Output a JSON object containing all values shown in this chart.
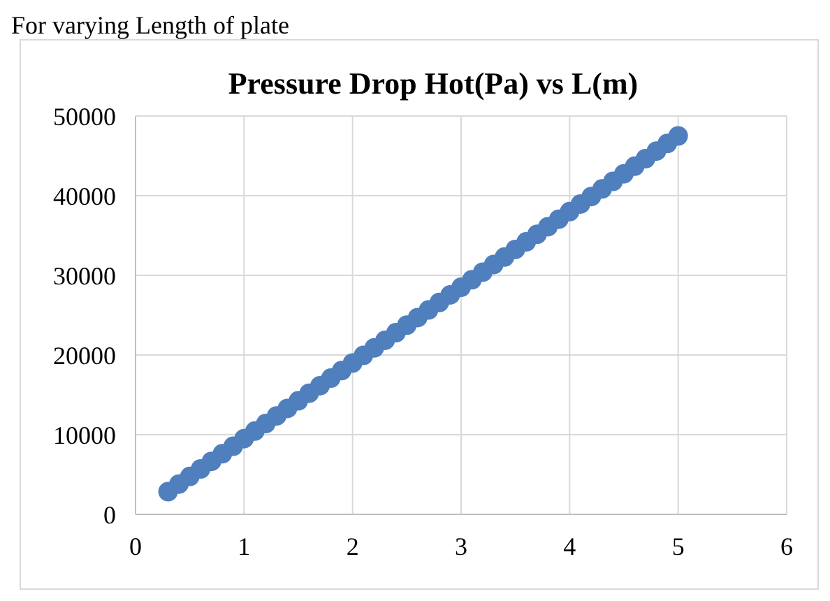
{
  "chart_data": {
    "type": "scatter",
    "title": "Pressure Drop Hot(Pa) vs L(m)",
    "annotations": [
      "For varying Length of plate"
    ],
    "x": [
      0.3,
      0.4,
      0.5,
      0.6,
      0.7,
      0.8,
      0.9,
      1.0,
      1.1,
      1.2,
      1.3,
      1.4,
      1.5,
      1.6,
      1.7,
      1.8,
      1.9,
      2.0,
      2.1,
      2.2,
      2.3,
      2.4,
      2.5,
      2.6,
      2.7,
      2.8,
      2.9,
      3.0,
      3.1,
      3.2,
      3.3,
      3.4,
      3.5,
      3.6,
      3.7,
      3.8,
      3.9,
      4.0,
      4.1,
      4.2,
      4.3,
      4.4,
      4.5,
      4.6,
      4.7,
      4.8,
      4.9,
      5.0
    ],
    "series": [
      {
        "color": "#4f7fbd",
        "values": [
          2850,
          3800,
          4750,
          5700,
          6650,
          7600,
          8550,
          9500,
          10450,
          11400,
          12350,
          13300,
          14250,
          15200,
          16150,
          17100,
          18050,
          19000,
          19950,
          20900,
          21850,
          22800,
          23750,
          24700,
          25650,
          26600,
          27550,
          28500,
          29450,
          30400,
          31350,
          32300,
          33250,
          34200,
          35150,
          36100,
          37050,
          38000,
          38950,
          39900,
          40850,
          41800,
          42750,
          43700,
          44650,
          45600,
          46550,
          47500
        ]
      }
    ],
    "xlim": [
      0,
      6
    ],
    "xticks": [
      0,
      1,
      2,
      3,
      4,
      5,
      6
    ],
    "ylim": [
      0,
      50000
    ],
    "yticks": [
      0,
      10000,
      20000,
      30000,
      40000,
      50000
    ],
    "grid": true,
    "marker": "circle"
  }
}
